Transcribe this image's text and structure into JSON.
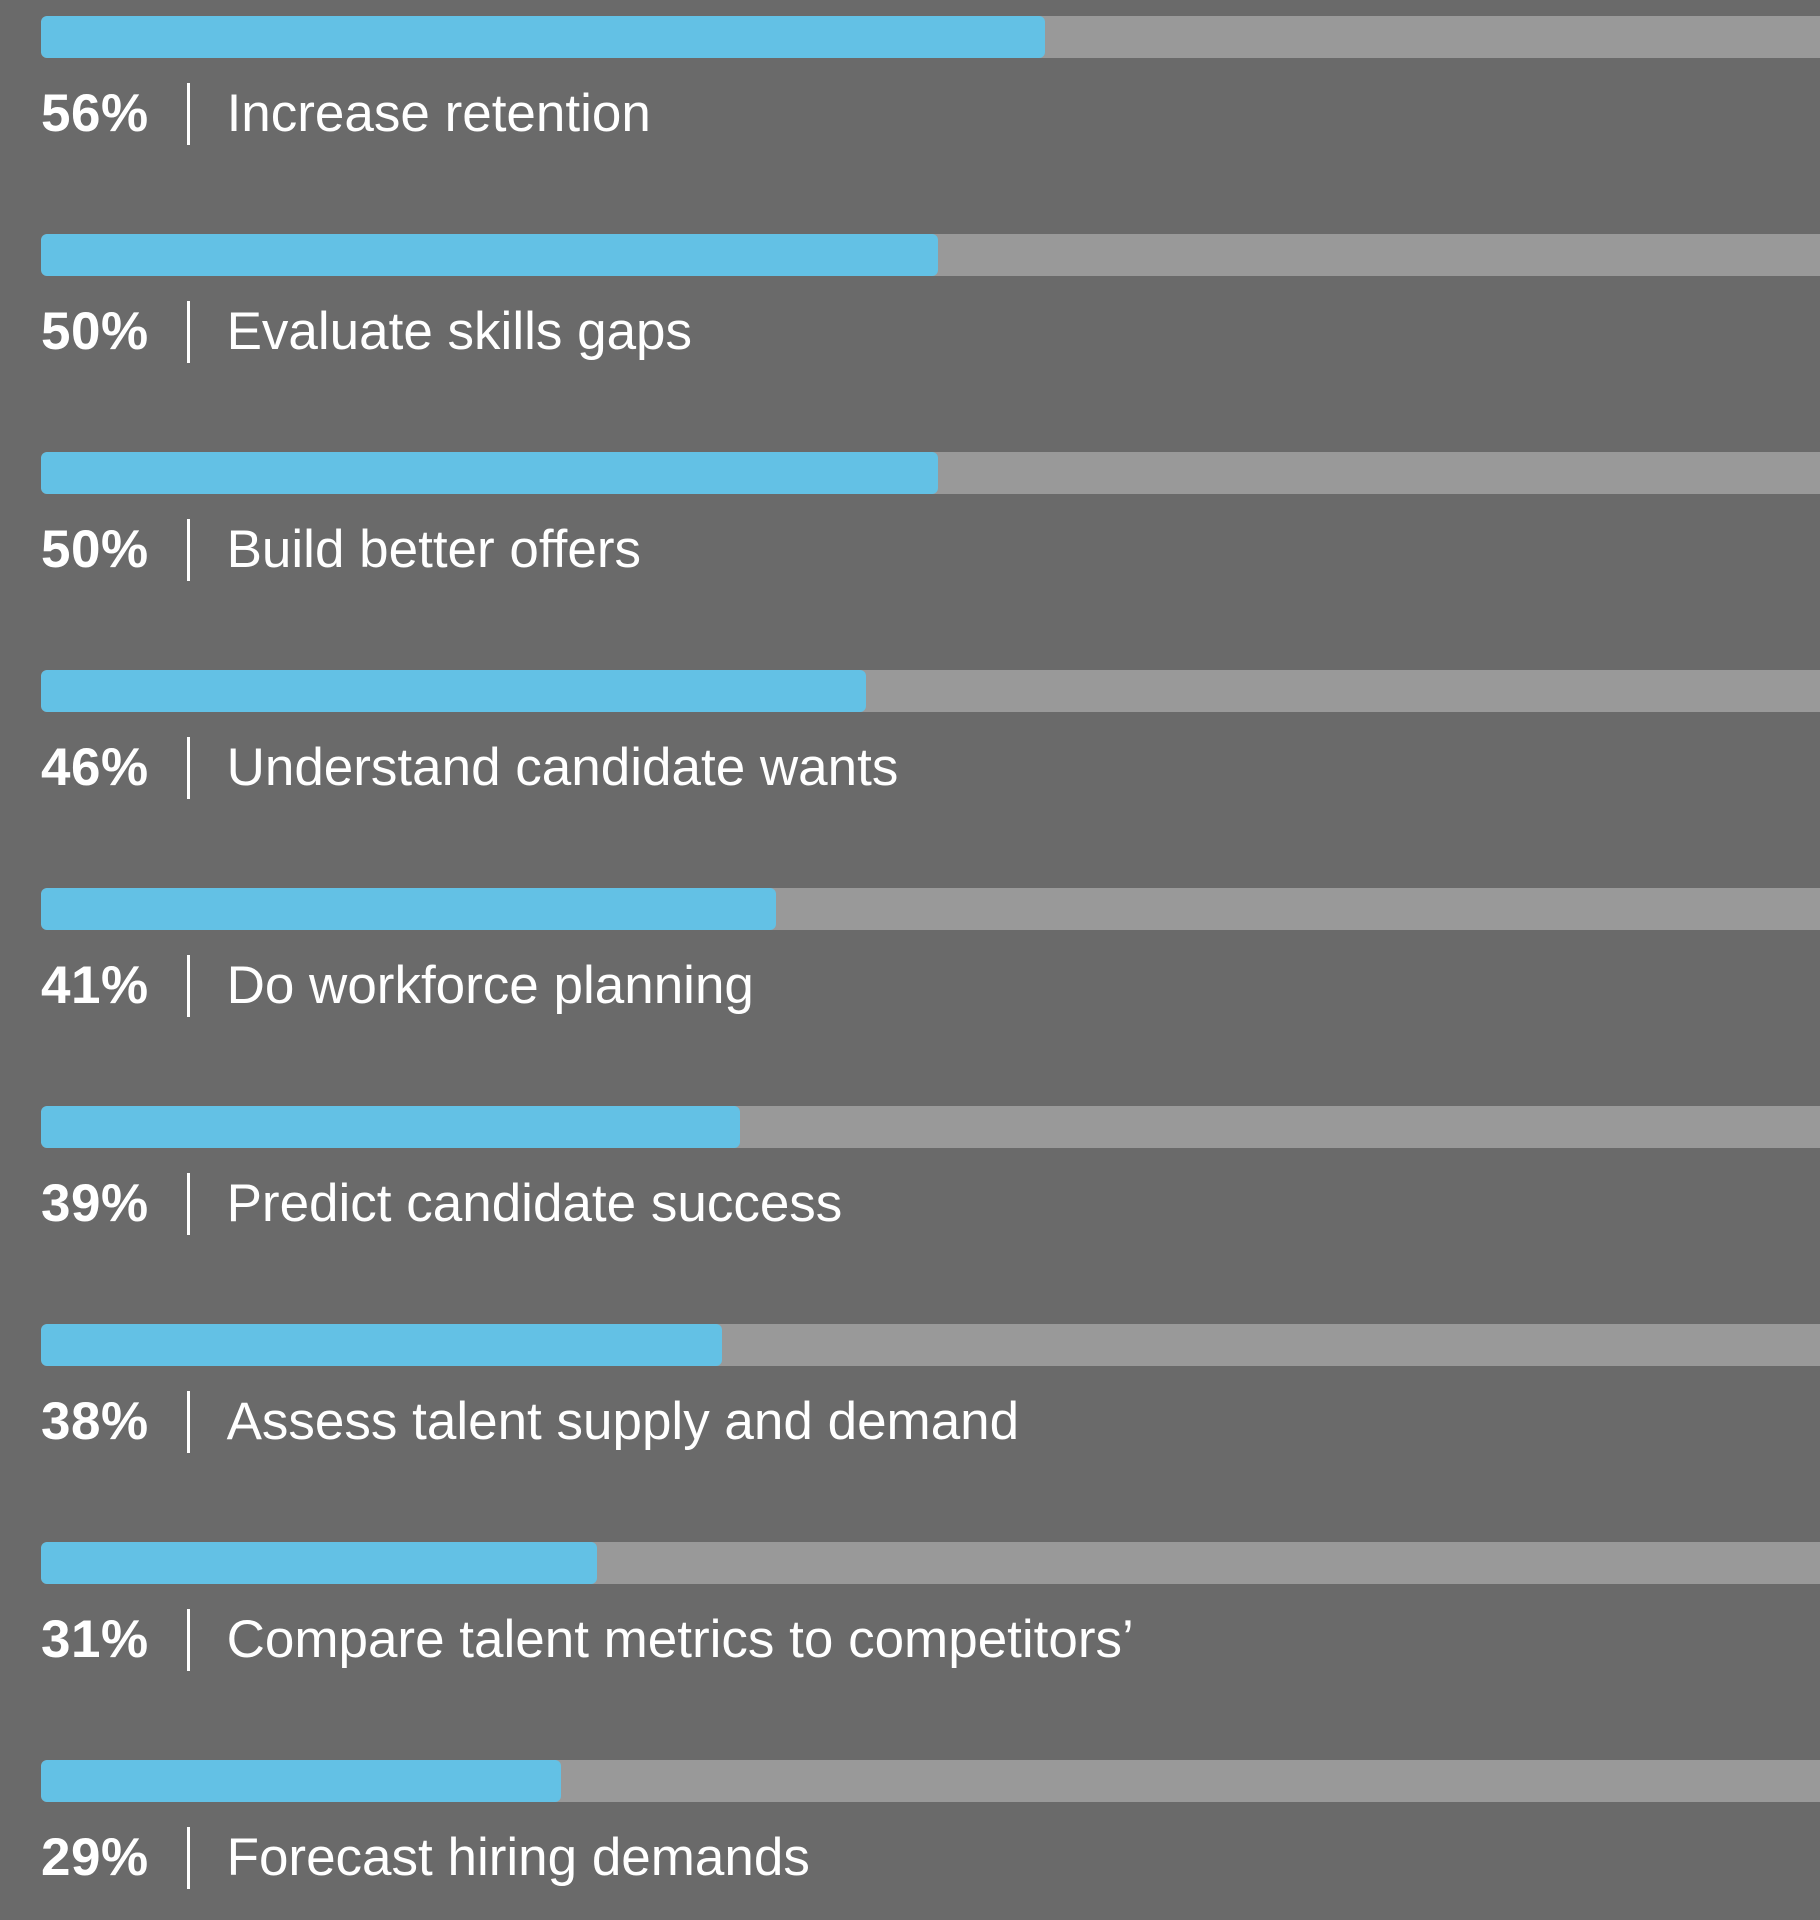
{
  "colors": {
    "background": "#6a6a6a",
    "bar_fill": "#63c1e5",
    "bar_track": "#999999",
    "text": "#ffffff"
  },
  "chart_data": {
    "type": "bar",
    "orientation": "horizontal",
    "title": "",
    "xlabel": "",
    "ylabel": "",
    "xlim": [
      0,
      100
    ],
    "grid": false,
    "legend": "none",
    "categories": [
      "Increase retention",
      "Evaluate skills gaps",
      "Build better offers",
      "Understand candidate wants",
      "Do workforce planning",
      "Predict candidate success",
      "Assess talent supply and demand",
      "Compare talent metrics to competitors’",
      "Forecast hiring demands"
    ],
    "values": [
      56,
      50,
      50,
      46,
      41,
      39,
      38,
      31,
      29
    ],
    "value_labels": [
      "56%",
      "50%",
      "50%",
      "46%",
      "41%",
      "39%",
      "38%",
      "31%",
      "29%"
    ],
    "separator": "|"
  }
}
